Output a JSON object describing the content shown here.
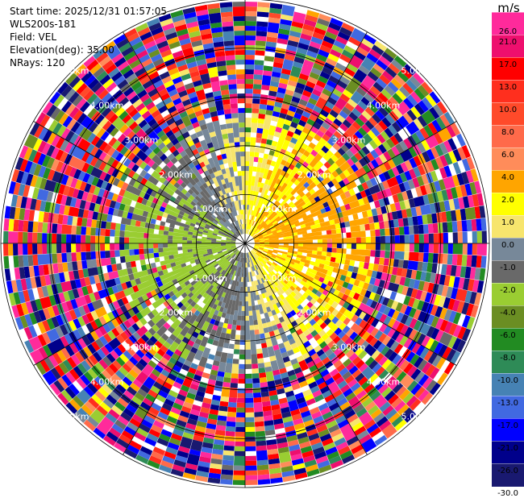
{
  "info": {
    "start_time": "Start time: 2025/12/31 01:57:05",
    "instrument": "WLS200s-181",
    "field": "Field: VEL",
    "elevation": "Elevation(deg): 35.00",
    "nrays": "NRays: 120"
  },
  "colorbar": {
    "unit": "m/s",
    "levels": [
      "26.0",
      "21.0",
      "17.0",
      "13.0",
      "10.0",
      "8.0",
      "6.0",
      "4.0",
      "2.0",
      "1.0",
      "0.0",
      "-1.0",
      "-2.0",
      "-4.0",
      "-6.0",
      "-8.0",
      "-10.0",
      "-13.0",
      "-17.0",
      "-21.0",
      "-26.0",
      "-30.0"
    ],
    "colors": [
      "#ff2a9b",
      "#ee0f6e",
      "#ff0000",
      "#ff2f1e",
      "#ff4a2a",
      "#ff6a4a",
      "#ff8c5a",
      "#ffa500",
      "#ffff00",
      "#f7e56d",
      "#778899",
      "#696969",
      "#9acd32",
      "#6b8e23",
      "#228b22",
      "#2e8b57",
      "#4682b4",
      "#4169e1",
      "#0000ff",
      "#00008b",
      "#191970"
    ]
  },
  "chart_data": {
    "type": "heatmap",
    "projection": "polar (PPI)",
    "field": "VEL",
    "units": "m/s",
    "nrays": 120,
    "range_ring_labels": [
      "1.00km",
      "2.00km",
      "3.00km",
      "4.00km",
      "5.00km"
    ],
    "color_scale": [
      -30.0,
      -26.0,
      -21.0,
      -17.0,
      -13.0,
      -10.0,
      -8.0,
      -6.0,
      -4.0,
      -2.0,
      -1.0,
      0.0,
      1.0,
      2.0,
      4.0,
      6.0,
      8.0,
      10.0,
      13.0,
      17.0,
      21.0,
      26.0
    ]
  }
}
